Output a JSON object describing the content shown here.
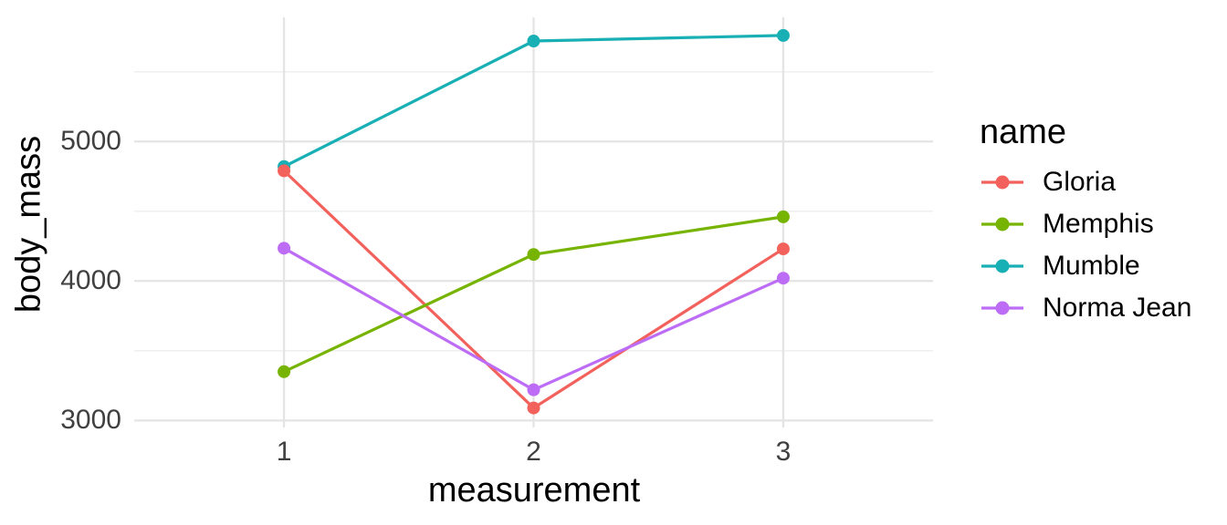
{
  "figure": {
    "background_color": "#FFFFFF",
    "axis_title_color": "#000000",
    "tick_label_color": "#404040",
    "grid_major_color": "#E4E4E4",
    "grid_minor_color": "#EFEFEF"
  },
  "chart_data": {
    "type": "line",
    "title": "",
    "xlabel": "measurement",
    "ylabel": "body_mass",
    "x": [
      1,
      2,
      3
    ],
    "series": [
      {
        "name": "Gloria",
        "color": "#F3615C",
        "values": [
          4790,
          3090,
          4230
        ]
      },
      {
        "name": "Memphis",
        "color": "#77B402",
        "values": [
          3350,
          4190,
          4460
        ]
      },
      {
        "name": "Mumble",
        "color": "#18AFB5",
        "values": [
          4820,
          5720,
          5760
        ]
      },
      {
        "name": "Norma Jean",
        "color": "#BD6CF6",
        "values": [
          4235,
          3220,
          4020
        ]
      }
    ],
    "xticks": {
      "values": [
        1,
        2,
        3
      ],
      "labels": [
        "1",
        "2",
        "3"
      ]
    },
    "yticks": {
      "values": [
        3000,
        4000,
        5000
      ],
      "labels": [
        "3000",
        "4000",
        "5000"
      ]
    },
    "y_minor_gridlines": [
      3500,
      4500,
      5500
    ],
    "xlim": [
      0.4,
      3.6
    ],
    "ylim": [
      2950,
      5890
    ],
    "grid": true,
    "legend": {
      "title": "name",
      "position": "right"
    }
  }
}
